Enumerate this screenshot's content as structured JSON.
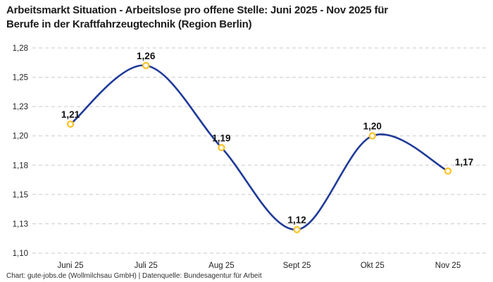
{
  "header": {
    "title_line1": "Arbeitsmarkt Situation - Arbeitslose pro offene Stelle: Juni 2025 - Nov 2025 für",
    "title_line2": "Berufe in der Kraftfahrzeugtechnik (Region Berlin)"
  },
  "footer": {
    "credit": "Chart: gute-jobs.de (Wollmilchsau GmbH) | Datenquelle: Bundesagentur für Arbeit"
  },
  "chart_data": {
    "type": "line",
    "title": "Arbeitsmarkt Situation - Arbeitslose pro offene Stelle: Juni 2025 - Nov 2025 für Berufe in der Kraftfahrzeugtechnik (Region Berlin)",
    "categories": [
      "Juni 25",
      "Juli 25",
      "Aug 25",
      "Sept 25",
      "Okt 25",
      "Nov 25"
    ],
    "values": [
      1.21,
      1.26,
      1.19,
      1.12,
      1.2,
      1.17
    ],
    "point_labels": [
      "1,21",
      "1,26",
      "1,19",
      "1,12",
      "1,20",
      "1,17"
    ],
    "ylim": [
      1.1,
      1.275
    ],
    "y_ticks": [
      {
        "value": 1.275,
        "label": "1,28"
      },
      {
        "value": 1.25,
        "label": "1,25"
      },
      {
        "value": 1.225,
        "label": "1,23"
      },
      {
        "value": 1.2,
        "label": "1,20"
      },
      {
        "value": 1.175,
        "label": "1,18"
      },
      {
        "value": 1.15,
        "label": "1,15"
      },
      {
        "value": 1.125,
        "label": "1,13"
      },
      {
        "value": 1.1,
        "label": "1,10"
      }
    ],
    "grid": "horizontal-dashed",
    "legend": "none",
    "smooth": true,
    "colors": {
      "line": "#203a99",
      "marker_ring": "#fbc531",
      "marker_fill": "#ffffff",
      "gridline": "#c9c9c9",
      "tick_text": "#1f1f1f",
      "point_label_text": "#101010"
    }
  }
}
